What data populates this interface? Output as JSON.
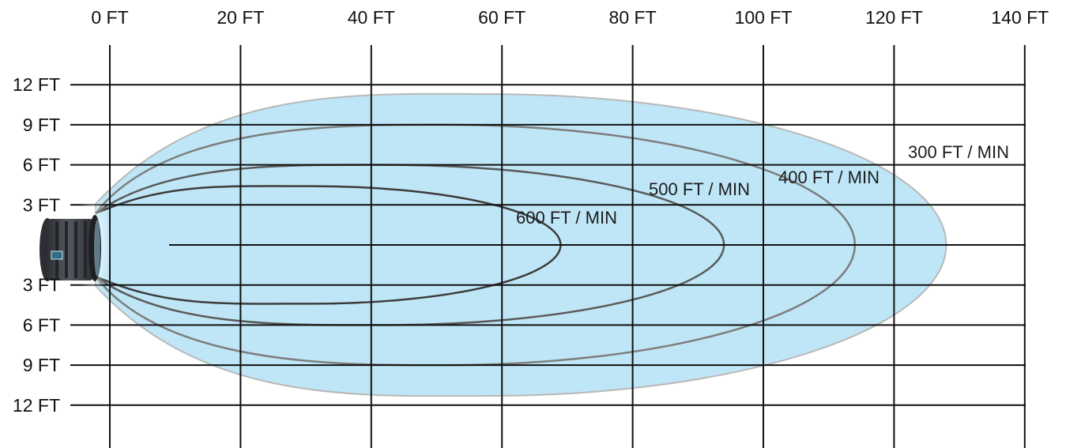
{
  "chart_data": {
    "type": "area",
    "x_axis": {
      "unit": "FT",
      "ticks": [
        0,
        20,
        40,
        60,
        80,
        100,
        120,
        140
      ],
      "tick_labels": [
        "0 FT",
        "20 FT",
        "40 FT",
        "60 FT",
        "80 FT",
        "100 FT",
        "120 FT",
        "140 FT"
      ],
      "position": "top"
    },
    "y_axis": {
      "unit": "FT",
      "ticks_above": [
        12,
        9,
        6,
        3
      ],
      "tick_labels_above": [
        "12 FT",
        "9 FT",
        "6 FT",
        "3 FT"
      ],
      "ticks_below": [
        3,
        6,
        9,
        12
      ],
      "tick_labels_below": [
        "3 FT",
        "6 FT",
        "9 FT",
        "12 FT"
      ],
      "position": "left"
    },
    "grid": true,
    "series": [
      {
        "name": "300 FT / MIN",
        "reach_ft": 128,
        "half_width_ft": 11.3,
        "fill": "#bfe6f6",
        "stroke": "#b8b8b8"
      },
      {
        "name": "400 FT / MIN",
        "reach_ft": 114,
        "half_width_ft": 9.0,
        "fill": "none",
        "stroke": "#7d7d7d"
      },
      {
        "name": "500 FT / MIN",
        "reach_ft": 94,
        "half_width_ft": 6.0,
        "fill": "none",
        "stroke": "#5a5a5a"
      },
      {
        "name": "600 FT / MIN",
        "reach_ft": 69,
        "half_width_ft": 4.4,
        "fill": "none",
        "stroke": "#3c3c3c"
      }
    ],
    "colors": {
      "grid": "#111111",
      "air_fill": "#bfe6f6",
      "fan_body": "#3a3d42"
    },
    "source_icon": "fan-icon"
  }
}
